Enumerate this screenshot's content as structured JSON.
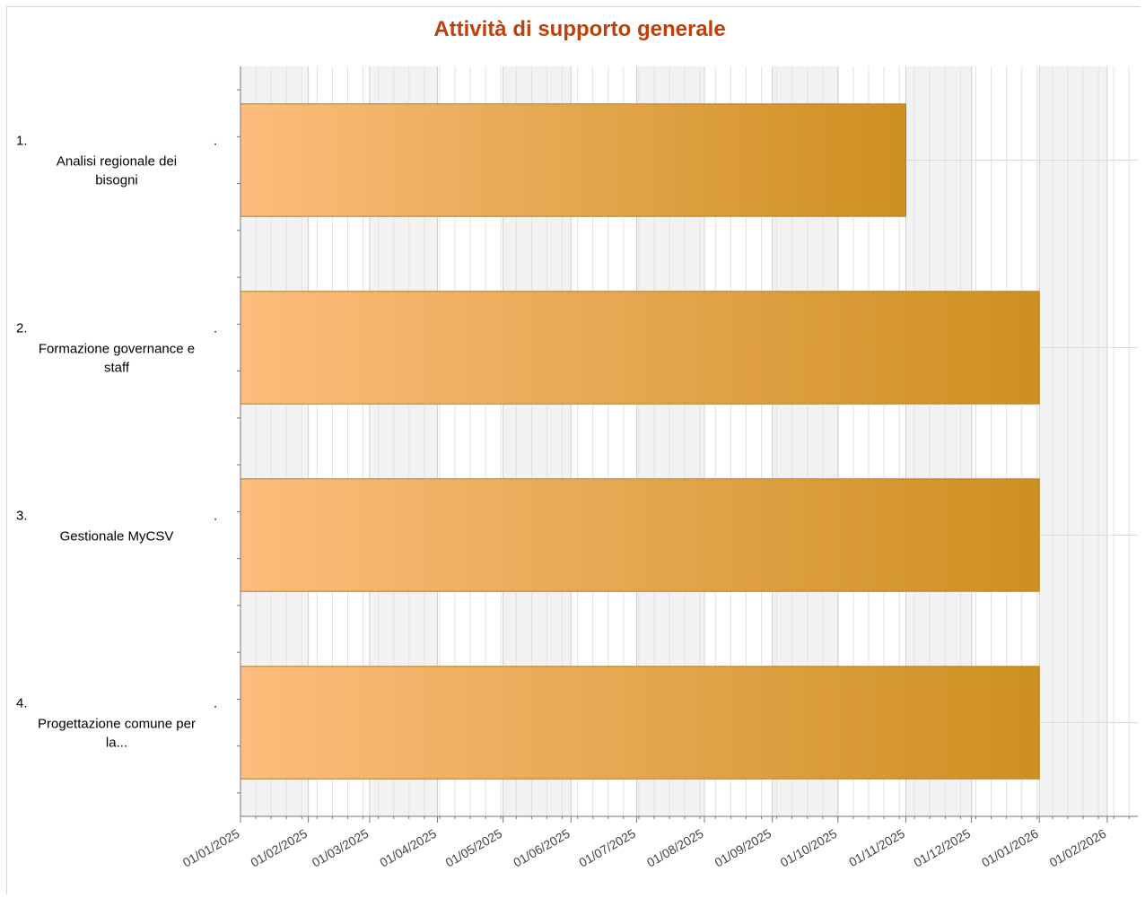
{
  "chart_data": {
    "type": "bar",
    "orientation": "horizontal",
    "title": "Attività di supporto generale",
    "categories": [
      {
        "number": "1.",
        "label_lines": [
          "Analisi regionale dei",
          "bisogni"
        ]
      },
      {
        "number": "2.",
        "label_lines": [
          "Formazione governance e",
          "staff"
        ]
      },
      {
        "number": "3.",
        "label_lines": [
          "Gestionale MyCSV"
        ]
      },
      {
        "number": "4.",
        "label_lines": [
          "Progettazione comune per",
          "la..."
        ]
      }
    ],
    "series": [
      {
        "values": [
          {
            "start": "2025-01-01",
            "end": "2025-11-01"
          },
          {
            "start": "2025-01-01",
            "end": "2026-01-01"
          },
          {
            "start": "2025-01-01",
            "end": "2026-01-01"
          },
          {
            "start": "2025-01-01",
            "end": "2026-01-01"
          }
        ]
      }
    ],
    "x_ticks": [
      "01/01/2025",
      "01/02/2025",
      "01/03/2025",
      "01/04/2025",
      "01/05/2025",
      "01/06/2025",
      "01/07/2025",
      "01/08/2025",
      "01/09/2025",
      "01/10/2025",
      "01/11/2025",
      "01/12/2025",
      "01/01/2026",
      "01/02/2026"
    ],
    "xlim": [
      "2025-01-01",
      "2026-02-15"
    ],
    "grid": true,
    "colors": {
      "title": "#c0400c",
      "bar_start": "#fdbd7c",
      "bar_end": "#cc9020",
      "bar_border": "#b47c28",
      "band_shaded": "#f2f2f2",
      "grid": "#e2e2e2",
      "axis": "#777777"
    }
  }
}
